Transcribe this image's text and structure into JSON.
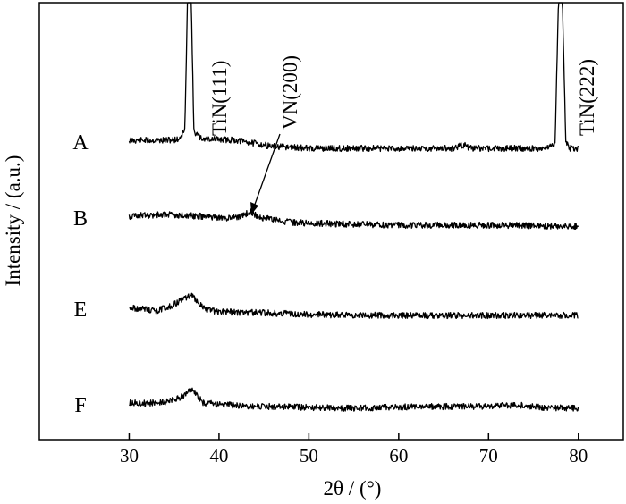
{
  "chart_data": {
    "type": "line",
    "xlabel": "2θ / (°)",
    "ylabel": "Intensity / (a.u.)",
    "xlim": [
      20,
      85
    ],
    "x_ticks": [
      30,
      40,
      50,
      60,
      70,
      80
    ],
    "grid": false,
    "legend": "none",
    "series": [
      {
        "name": "A",
        "points": [
          [
            30,
            0.0
          ],
          [
            34,
            0.0
          ],
          [
            35.5,
            0.05
          ],
          [
            36.2,
            0.6
          ],
          [
            36.5,
            8.0
          ],
          [
            36.9,
            8.0
          ],
          [
            37.2,
            0.5
          ],
          [
            38,
            0.1
          ],
          [
            42,
            0.0
          ],
          [
            46,
            -0.35
          ],
          [
            50,
            -0.45
          ],
          [
            55,
            -0.45
          ],
          [
            60,
            -0.45
          ],
          [
            66,
            -0.45
          ],
          [
            67.3,
            -0.25
          ],
          [
            67.8,
            -0.45
          ],
          [
            72,
            -0.45
          ],
          [
            76,
            -0.45
          ],
          [
            77.4,
            -0.2
          ],
          [
            77.8,
            8.0
          ],
          [
            78.2,
            8.0
          ],
          [
            78.6,
            -0.1
          ],
          [
            79,
            -0.45
          ],
          [
            80,
            -0.45
          ]
        ]
      },
      {
        "name": "B",
        "points": [
          [
            30,
            0.0
          ],
          [
            34,
            0.1
          ],
          [
            38,
            0.0
          ],
          [
            41,
            -0.1
          ],
          [
            42.5,
            0.0
          ],
          [
            43.5,
            0.25
          ],
          [
            44.5,
            -0.05
          ],
          [
            48,
            -0.35
          ],
          [
            55,
            -0.45
          ],
          [
            60,
            -0.5
          ],
          [
            70,
            -0.5
          ],
          [
            80,
            -0.55
          ]
        ]
      },
      {
        "name": "E",
        "points": [
          [
            30,
            0.0
          ],
          [
            33,
            -0.2
          ],
          [
            34.5,
            0.05
          ],
          [
            35.5,
            0.3
          ],
          [
            36.5,
            0.6
          ],
          [
            37,
            0.7
          ],
          [
            37.5,
            0.4
          ],
          [
            38.5,
            -0.1
          ],
          [
            40,
            -0.25
          ],
          [
            45,
            -0.3
          ],
          [
            50,
            -0.4
          ],
          [
            60,
            -0.45
          ],
          [
            70,
            -0.45
          ],
          [
            80,
            -0.45
          ]
        ]
      },
      {
        "name": "F",
        "points": [
          [
            30,
            0.0
          ],
          [
            33,
            0.0
          ],
          [
            35,
            0.15
          ],
          [
            36,
            0.4
          ],
          [
            36.8,
            0.75
          ],
          [
            37.3,
            0.6
          ],
          [
            38.2,
            0.0
          ],
          [
            42,
            -0.15
          ],
          [
            50,
            -0.25
          ],
          [
            55,
            -0.3
          ],
          [
            62,
            -0.2
          ],
          [
            70,
            -0.2
          ],
          [
            73,
            -0.1
          ],
          [
            76,
            -0.25
          ],
          [
            80,
            -0.3
          ]
        ]
      }
    ],
    "annotations": [
      {
        "text": "TiN(111)",
        "x": 36.7
      },
      {
        "text": "VN(200)",
        "x": 43.5
      },
      {
        "text": "TiN(222)",
        "x": 78
      }
    ]
  }
}
